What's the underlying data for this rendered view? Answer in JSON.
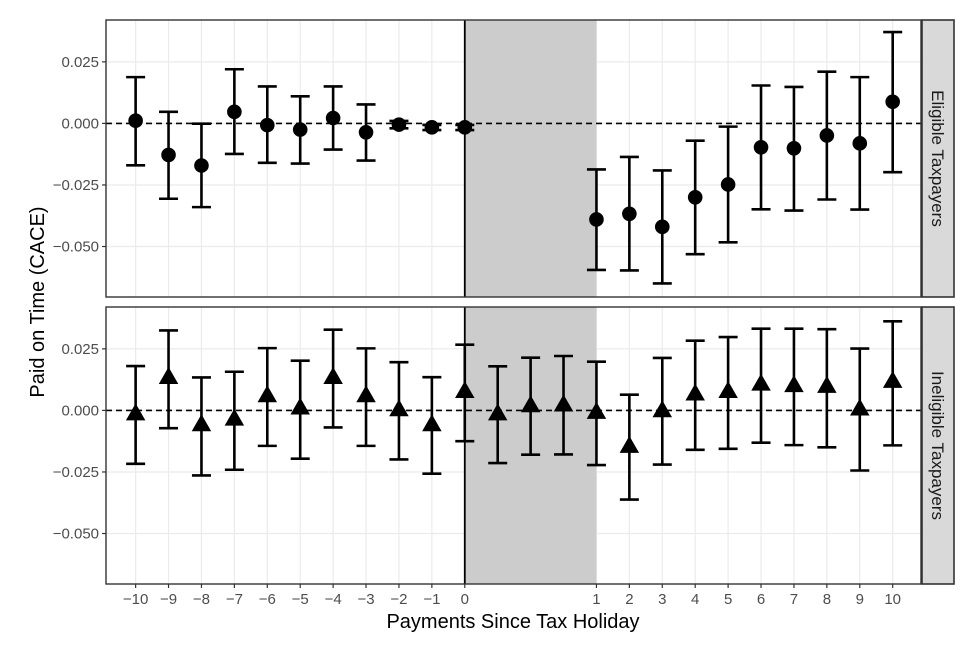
{
  "chart_data": {
    "type": "scatter",
    "subtype": "point-with-errorbars, faceted",
    "xlabel": "Payments Since Tax Holiday",
    "ylabel": "Paid on Time (CACE)",
    "x_categories": [
      "−10",
      "−9",
      "−8",
      "−7",
      "−6",
      "−5",
      "−4",
      "−3",
      "−2",
      "−1",
      "0",
      "",
      "",
      "",
      "1",
      "2",
      "3",
      "4",
      "5",
      "6",
      "7",
      "8",
      "9",
      "10"
    ],
    "x_index_range": [
      -0.9,
      23.86
    ],
    "shaded_region_index": [
      10,
      14
    ],
    "vertical_line_index": 10,
    "reference_line_y": 0,
    "y_ticks": [
      0.025,
      0.0,
      -0.025,
      -0.05
    ],
    "y_tick_labels": [
      "0.025",
      "0.000",
      "−0.025",
      "−0.050"
    ],
    "ylim": [
      -0.0705,
      0.042
    ],
    "grid": true,
    "shade_color": "#cccccc",
    "panels": [
      {
        "strip_label": "Eligible Taxpayers",
        "marker": "circle",
        "estimate": [
          0.0011,
          -0.0128,
          -0.0171,
          0.0047,
          -0.0007,
          -0.0025,
          0.0022,
          -0.0036,
          -0.0005,
          -0.0016,
          -0.0016,
          null,
          null,
          null,
          -0.039,
          -0.0367,
          -0.042,
          -0.03,
          -0.0248,
          -0.0097,
          -0.0101,
          -0.0049,
          -0.0081,
          0.0088
        ],
        "ci_upper": [
          0.0188,
          0.0047,
          -0.0001,
          0.022,
          0.015,
          0.011,
          0.015,
          0.0077,
          0.001,
          -0.0006,
          -0.0006,
          null,
          null,
          null,
          -0.0187,
          -0.0136,
          -0.0191,
          -0.007,
          -0.0013,
          0.0154,
          0.0148,
          0.021,
          0.0188,
          0.0371
        ],
        "ci_lower": [
          -0.017,
          -0.0306,
          -0.034,
          -0.0124,
          -0.016,
          -0.0163,
          -0.0106,
          -0.0151,
          -0.002,
          -0.0027,
          -0.0027,
          null,
          null,
          null,
          -0.0595,
          -0.0597,
          -0.065,
          -0.0531,
          -0.0483,
          -0.0349,
          -0.0354,
          -0.0309,
          -0.035,
          -0.0198
        ]
      },
      {
        "strip_label": "Ineligible Taxpayers",
        "marker": "triangle",
        "estimate": [
          -0.0013,
          0.0135,
          -0.0057,
          -0.0034,
          0.0061,
          0.0011,
          0.0135,
          0.0061,
          0.0004,
          -0.0057,
          0.0078,
          -0.0013,
          0.002,
          0.0023,
          -0.0007,
          -0.0145,
          0.0,
          0.0068,
          0.0078,
          0.0108,
          0.0102,
          0.0099,
          0.0007,
          0.0119
        ],
        "ci_upper": [
          0.018,
          0.0325,
          0.0134,
          0.0157,
          0.0253,
          0.0202,
          0.0328,
          0.0252,
          0.0196,
          0.0135,
          0.0267,
          0.0179,
          0.0214,
          0.0221,
          0.0198,
          0.0064,
          0.0213,
          0.0283,
          0.0298,
          0.0332,
          0.0332,
          0.033,
          0.0251,
          0.0362
        ],
        "ci_lower": [
          -0.0217,
          -0.0072,
          -0.0264,
          -0.0241,
          -0.0144,
          -0.0196,
          -0.0069,
          -0.0144,
          -0.0199,
          -0.0257,
          -0.0125,
          -0.0214,
          -0.018,
          -0.0179,
          -0.0222,
          -0.0362,
          -0.022,
          -0.016,
          -0.0156,
          -0.0131,
          -0.0141,
          -0.015,
          -0.0244,
          -0.0142
        ]
      }
    ]
  }
}
